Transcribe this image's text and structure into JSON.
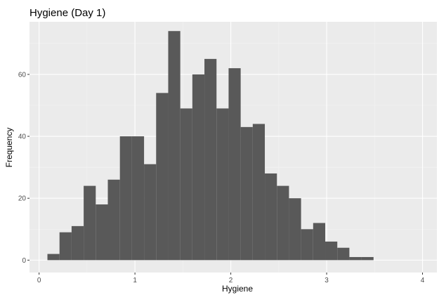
{
  "chart_data": {
    "type": "bar",
    "title": "Hygiene (Day 1)",
    "xlabel": "Hygiene",
    "ylabel": "Frequency",
    "xlim": [
      -0.1,
      4.15
    ],
    "ylim": [
      -4,
      77
    ],
    "x_ticks": [
      0,
      1,
      2,
      3,
      4
    ],
    "y_ticks": [
      0,
      20,
      40,
      60
    ],
    "grid": true,
    "bin_width": 0.126,
    "bins": [
      {
        "x0": 0.087,
        "x1": 0.213,
        "count": 2
      },
      {
        "x0": 0.213,
        "x1": 0.339,
        "count": 9
      },
      {
        "x0": 0.339,
        "x1": 0.465,
        "count": 11
      },
      {
        "x0": 0.465,
        "x1": 0.591,
        "count": 24
      },
      {
        "x0": 0.591,
        "x1": 0.717,
        "count": 18
      },
      {
        "x0": 0.717,
        "x1": 0.843,
        "count": 26
      },
      {
        "x0": 0.843,
        "x1": 0.969,
        "count": 40
      },
      {
        "x0": 0.969,
        "x1": 1.095,
        "count": 40
      },
      {
        "x0": 1.095,
        "x1": 1.221,
        "count": 31
      },
      {
        "x0": 1.221,
        "x1": 1.347,
        "count": 54
      },
      {
        "x0": 1.347,
        "x1": 1.473,
        "count": 74
      },
      {
        "x0": 1.473,
        "x1": 1.599,
        "count": 49
      },
      {
        "x0": 1.599,
        "x1": 1.725,
        "count": 60
      },
      {
        "x0": 1.725,
        "x1": 1.851,
        "count": 65
      },
      {
        "x0": 1.851,
        "x1": 1.977,
        "count": 49
      },
      {
        "x0": 1.977,
        "x1": 2.103,
        "count": 62
      },
      {
        "x0": 2.103,
        "x1": 2.229,
        "count": 43
      },
      {
        "x0": 2.229,
        "x1": 2.355,
        "count": 44
      },
      {
        "x0": 2.355,
        "x1": 2.481,
        "count": 28
      },
      {
        "x0": 2.481,
        "x1": 2.607,
        "count": 24
      },
      {
        "x0": 2.607,
        "x1": 2.733,
        "count": 20
      },
      {
        "x0": 2.733,
        "x1": 2.859,
        "count": 10
      },
      {
        "x0": 2.859,
        "x1": 2.985,
        "count": 12
      },
      {
        "x0": 2.985,
        "x1": 3.111,
        "count": 6
      },
      {
        "x0": 3.111,
        "x1": 3.237,
        "count": 4
      },
      {
        "x0": 3.237,
        "x1": 3.363,
        "count": 1
      },
      {
        "x0": 3.363,
        "x1": 3.489,
        "count": 1
      }
    ],
    "colors": {
      "panel": "#ebebeb",
      "grid_major": "#ffffff",
      "grid_minor": "#f4f4f4",
      "bar": "#595959",
      "tick_mark": "#333333"
    }
  }
}
